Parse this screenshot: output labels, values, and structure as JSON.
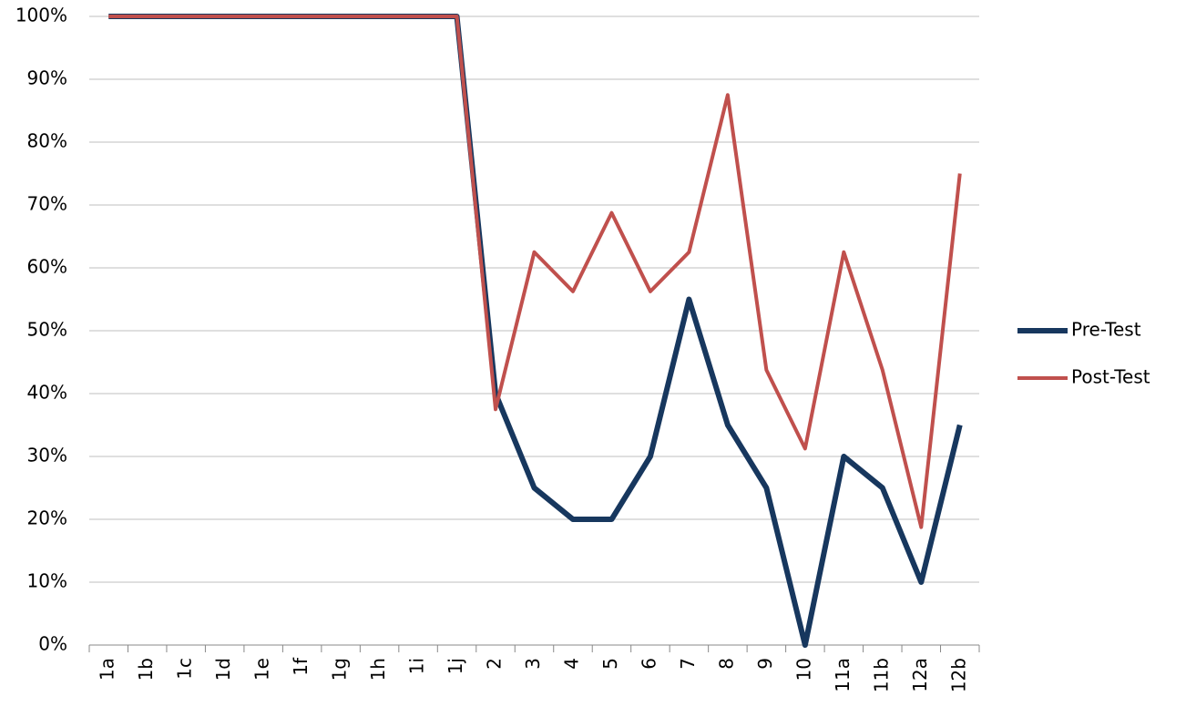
{
  "chart_data": {
    "type": "line",
    "categories": [
      "1a",
      "1b",
      "1c",
      "1d",
      "1e",
      "1f",
      "1g",
      "1h",
      "1i",
      "1j",
      "2",
      "3",
      "4",
      "5",
      "6",
      "7",
      "8",
      "9",
      "10",
      "11a",
      "11b",
      "12a",
      "12b"
    ],
    "series": [
      {
        "name": "Pre-Test",
        "color": "#17375e",
        "width": 6,
        "values": [
          100,
          100,
          100,
          100,
          100,
          100,
          100,
          100,
          100,
          100,
          40,
          25,
          20,
          20,
          30,
          55,
          35,
          25,
          0,
          30,
          25,
          10,
          35
        ]
      },
      {
        "name": "Post-Test",
        "color": "#c0504d",
        "width": 4,
        "values": [
          100,
          100,
          100,
          100,
          100,
          100,
          100,
          100,
          100,
          100,
          37.5,
          62.5,
          56.25,
          68.75,
          56.25,
          62.5,
          87.5,
          43.75,
          31.25,
          62.5,
          43.75,
          18.75,
          75
        ]
      }
    ],
    "ylim": [
      0,
      100
    ],
    "yticks": [
      {
        "value": 0,
        "label": "0%"
      },
      {
        "value": 10,
        "label": "10%"
      },
      {
        "value": 20,
        "label": "20%"
      },
      {
        "value": 30,
        "label": "30%"
      },
      {
        "value": 40,
        "label": "40%"
      },
      {
        "value": 50,
        "label": "50%"
      },
      {
        "value": 60,
        "label": "60%"
      },
      {
        "value": 70,
        "label": "70%"
      },
      {
        "value": 80,
        "label": "80%"
      },
      {
        "value": 90,
        "label": "90%"
      },
      {
        "value": 100,
        "label": "100%"
      }
    ],
    "grid": true,
    "legend": "right"
  }
}
